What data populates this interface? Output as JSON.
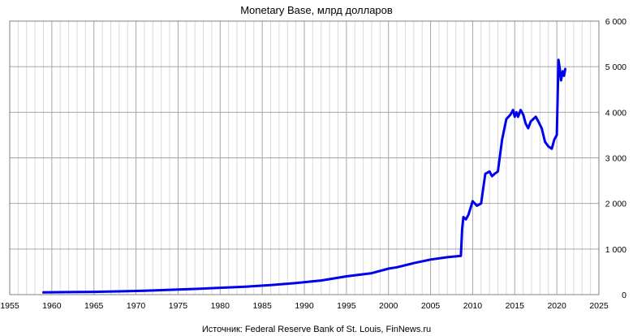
{
  "chart_data": {
    "type": "line",
    "title": "Monetary Base, млрд долларов",
    "source": "Источник: Federal Reserve Bank of St. Louis, FinNews.ru",
    "xlabel": "",
    "ylabel": "",
    "xlim": [
      1955,
      2025
    ],
    "ylim": [
      0,
      6000
    ],
    "x_ticks": [
      1955,
      1960,
      1965,
      1970,
      1975,
      1980,
      1985,
      1990,
      1995,
      2000,
      2005,
      2010,
      2015,
      2020,
      2025
    ],
    "y_ticks": [
      0,
      1000,
      2000,
      3000,
      4000,
      5000,
      6000
    ],
    "y_tick_labels": [
      "0",
      "1 000",
      "2 000",
      "3 000",
      "4 000",
      "5 000",
      "6 000"
    ],
    "y_axis_side": "right",
    "grid": true,
    "line_color": "#0000ee",
    "series": [
      {
        "x": [
          1959.0,
          1962.0,
          1965.0,
          1968.0,
          1971.0,
          1974.0,
          1977.0,
          1980.0,
          1983.0,
          1986.0,
          1989.0,
          1992.0,
          1995.0,
          1998.0,
          2000.0,
          2001.0,
          2003.0,
          2005.0,
          2007.0,
          2008.6,
          2008.75,
          2008.9,
          2009.2,
          2009.5,
          2010.0,
          2010.5,
          2011.0,
          2011.5,
          2012.0,
          2012.3,
          2012.6,
          2013.0,
          2013.5,
          2014.0,
          2014.5,
          2014.8,
          2015.0,
          2015.2,
          2015.4,
          2015.7,
          2016.0,
          2016.3,
          2016.6,
          2016.9,
          2017.2,
          2017.5,
          2017.8,
          2018.2,
          2018.6,
          2019.0,
          2019.4,
          2019.7,
          2020.0,
          2020.2,
          2020.35,
          2020.5,
          2020.7,
          2020.85,
          2021.0
        ],
        "y": [
          50,
          55,
          60,
          72,
          85,
          105,
          125,
          150,
          175,
          210,
          255,
          310,
          400,
          470,
          570,
          600,
          690,
          770,
          820,
          850,
          1450,
          1700,
          1650,
          1750,
          2050,
          1950,
          2000,
          2650,
          2700,
          2600,
          2650,
          2700,
          3400,
          3850,
          3950,
          4050,
          3900,
          4000,
          3900,
          4050,
          3950,
          3750,
          3650,
          3800,
          3850,
          3900,
          3800,
          3650,
          3350,
          3250,
          3200,
          3400,
          3500,
          5150,
          4950,
          4700,
          4900,
          4800,
          4950
        ]
      }
    ]
  }
}
